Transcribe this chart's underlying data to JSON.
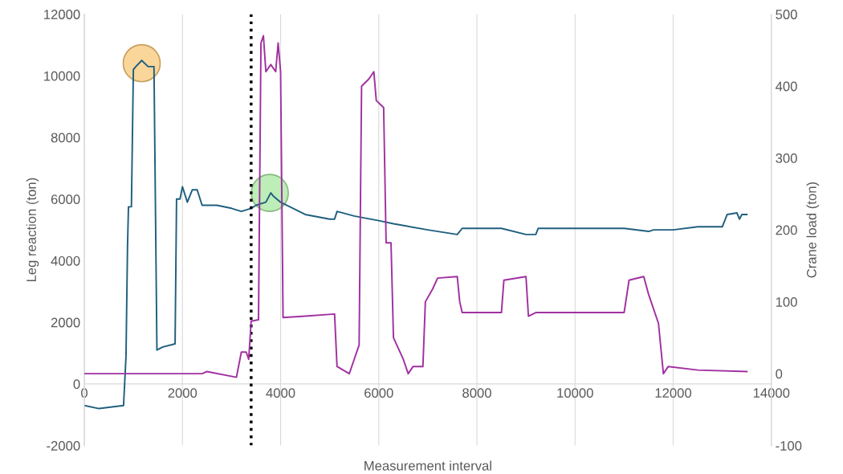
{
  "chart_data": {
    "type": "line",
    "xlabel": "Measurement interval",
    "ylabel": "Leg reaction (ton)",
    "y2label": "Crane load (ton)",
    "xlim": [
      0,
      14000
    ],
    "xticks": [
      0,
      2000,
      4000,
      6000,
      8000,
      10000,
      12000,
      14000
    ],
    "ylim": [
      -2000,
      12000
    ],
    "yticks": [
      -2000,
      0,
      2000,
      4000,
      6000,
      8000,
      10000,
      12000
    ],
    "y2lim": [
      -100,
      500
    ],
    "y2ticks": [
      -100,
      0,
      100,
      200,
      300,
      400,
      500
    ],
    "grid": "x",
    "line_style": "solid",
    "ref_lines": [
      {
        "axis": "x",
        "value": 3400,
        "label": null,
        "color": "#000000",
        "line_style": "dotted"
      }
    ],
    "series": [
      {
        "color": "#1f5f7f",
        "marker": "none",
        "x": [
          0,
          300,
          800,
          850,
          880,
          900,
          960,
          1000,
          1050,
          1170,
          1300,
          1420,
          1480,
          1600,
          1850,
          1880,
          1950,
          2000,
          2100,
          2200,
          2300,
          2400,
          2700,
          3000,
          3200,
          3400,
          3500,
          3700,
          3800,
          3850,
          4000,
          4500,
          5000,
          5100,
          5150,
          5500,
          6000,
          6300,
          7000,
          7600,
          7700,
          8500,
          9000,
          9200,
          9250,
          11000,
          11500,
          11600,
          12000,
          12500,
          13000,
          13100,
          13300,
          13350,
          13400,
          13500
        ],
        "values": [
          -700,
          -800,
          -700,
          900,
          4400,
          5750,
          5750,
          10200,
          10300,
          10500,
          10300,
          10300,
          1100,
          1200,
          1300,
          6000,
          6000,
          6400,
          5900,
          6300,
          6300,
          5800,
          5800,
          5700,
          5600,
          5700,
          5800,
          5900,
          6200,
          6100,
          5900,
          5500,
          5350,
          5350,
          5600,
          5450,
          5300,
          5200,
          5000,
          4850,
          5050,
          5050,
          4850,
          4850,
          5050,
          5050,
          4950,
          5000,
          5000,
          5100,
          5100,
          5500,
          5550,
          5350,
          5500,
          5500
        ]
      },
      {
        "color": "#a030a0",
        "marker": "none",
        "axis": "y2",
        "x": [
          0,
          2400,
          2500,
          3100,
          3200,
          3300,
          3350,
          3400,
          3550,
          3600,
          3650,
          3700,
          3800,
          3900,
          3950,
          4000,
          4050,
          4500,
          5100,
          5150,
          5400,
          5500,
          5600,
          5650,
          5800,
          5900,
          5950,
          6100,
          6150,
          6250,
          6300,
          6500,
          6600,
          6700,
          6900,
          6950,
          7100,
          7200,
          7600,
          7650,
          7700,
          8500,
          8550,
          9000,
          9050,
          9200,
          11000,
          11100,
          11400,
          11500,
          11700,
          11800,
          11900,
          12500,
          13500
        ],
        "values": [
          0,
          0,
          3,
          -5,
          30,
          30,
          20,
          73,
          75,
          460,
          470,
          420,
          430,
          420,
          460,
          420,
          78,
          80,
          83,
          10,
          0,
          20,
          40,
          400,
          410,
          420,
          380,
          370,
          182,
          182,
          50,
          20,
          0,
          10,
          10,
          100,
          118,
          133,
          135,
          100,
          85,
          85,
          130,
          135,
          80,
          85,
          85,
          130,
          135,
          110,
          70,
          0,
          10,
          5,
          3
        ]
      },
      {
        "type": "scatter",
        "marker": "circle",
        "color": "#f8c878",
        "x": [
          1170
        ],
        "values": [
          10410
        ]
      },
      {
        "type": "scatter",
        "marker": "circle",
        "color": "#a8e8a0",
        "x": [
          3780
        ],
        "values": [
          6200
        ]
      }
    ]
  }
}
